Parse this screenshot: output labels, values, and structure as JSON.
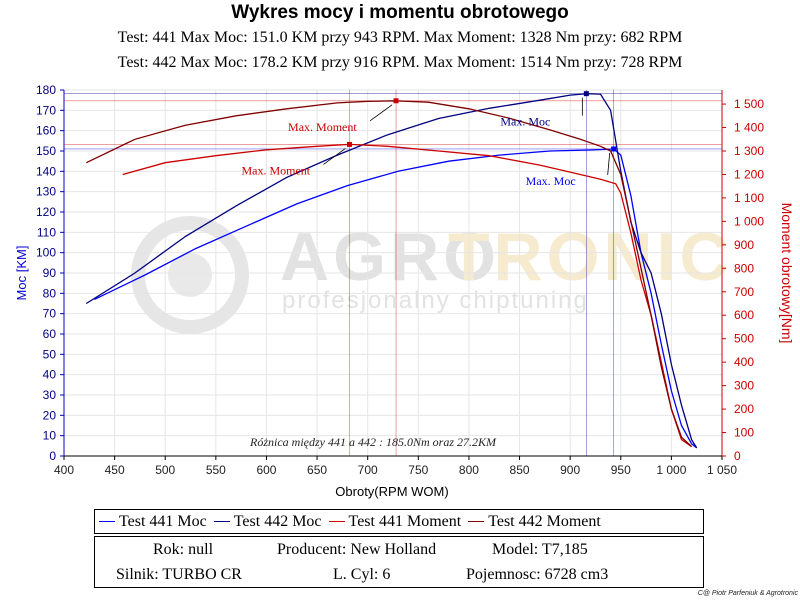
{
  "header": {
    "title": "Wykres mocy i momentu obrotowego",
    "test1_line": "Test: 441 Max Moc: 151.0 KM przy 943 RPM. Max Moment: 1328 Nm przy: 682 RPM",
    "test2_line": "Test: 442 Max Moc: 178.2 KM przy 916 RPM. Max Moment: 1514 Nm przy: 728 RPM"
  },
  "watermark": {
    "brand_a": "AGRO",
    "brand_b": "TRONIC",
    "tagline": "profesjonalny chiptuning"
  },
  "legend": {
    "items": [
      {
        "label": "Test 441 Moc",
        "color": "#0000ff"
      },
      {
        "label": "Test 442 Moc",
        "color": "#000080"
      },
      {
        "label": "Test 441 Moment",
        "color": "#cc0000"
      },
      {
        "label": "Test 442 Moment",
        "color": "#800000"
      }
    ]
  },
  "info": {
    "rok": "Rok: null",
    "producent": "Producent: New Holland",
    "model": "Model: T7,185",
    "silnik": "Silnik: TURBO CR",
    "cyl": "L. Cyl: 6",
    "pojemnosc": "Pojemnosc: 6728 cm3"
  },
  "copyright": "C@ Piotr Parfeniuk & Agrotronic",
  "chart_data": {
    "type": "line",
    "xlabel": "Obroty(RPM WOM)",
    "ylabel": "Moc [KM]",
    "y2label": "Moment obrotowy[Nm]",
    "xlim": [
      400,
      1050
    ],
    "ylim": [
      0,
      180
    ],
    "y2lim": [
      0,
      1560
    ],
    "x_ticks": [
      400,
      450,
      500,
      550,
      600,
      650,
      700,
      750,
      800,
      850,
      900,
      950,
      1000,
      1050
    ],
    "x_tick_labels": [
      "400",
      "450",
      "500",
      "550",
      "600",
      "650",
      "700",
      "750",
      "800",
      "850",
      "900",
      "950",
      "1 000",
      "1 050"
    ],
    "y_ticks": [
      0,
      10,
      20,
      30,
      40,
      50,
      60,
      70,
      80,
      90,
      100,
      110,
      120,
      130,
      140,
      150,
      160,
      170,
      180
    ],
    "y2_ticks": [
      0,
      100,
      200,
      300,
      400,
      500,
      600,
      700,
      800,
      900,
      1000,
      1100,
      1200,
      1300,
      1400,
      1500
    ],
    "y2_tick_labels": [
      "0",
      "100",
      "200",
      "300",
      "400",
      "500",
      "600",
      "700",
      "800",
      "900",
      "1 000",
      "1 100",
      "1 200",
      "1 300",
      "1 400",
      "1 500"
    ],
    "difference_note": "Różnica między 441 a 442 :  185.0Nm oraz 27.2KM",
    "series": [
      {
        "name": "Test 441 Moc",
        "axis": "left",
        "color": "#0000ff",
        "x": [
          430,
          480,
          530,
          580,
          630,
          680,
          730,
          780,
          830,
          880,
          920,
          943,
          950,
          960,
          970,
          980,
          990,
          1000,
          1010,
          1020,
          1025
        ],
        "y": [
          77,
          89,
          102,
          113,
          124,
          133,
          140,
          145,
          148,
          150,
          150.5,
          151,
          148,
          128,
          100,
          80,
          55,
          32,
          15,
          6,
          4
        ]
      },
      {
        "name": "Test 442 Moc",
        "axis": "left",
        "color": "#000080",
        "x": [
          422,
          470,
          520,
          570,
          620,
          670,
          720,
          770,
          820,
          870,
          900,
          916,
          930,
          940,
          950,
          960,
          970,
          980,
          990,
          1000,
          1010,
          1020,
          1025
        ],
        "y": [
          75,
          90,
          108,
          123,
          137,
          148,
          158,
          166,
          171,
          175,
          177.5,
          178.2,
          178,
          170,
          140,
          115,
          100,
          90,
          70,
          45,
          25,
          8,
          4
        ]
      },
      {
        "name": "Test 441 Moment",
        "axis": "right",
        "color": "#cc0000",
        "x": [
          458,
          500,
          550,
          600,
          650,
          682,
          720,
          770,
          820,
          870,
          900,
          930,
          945,
          950,
          960,
          970,
          980,
          990,
          1000,
          1010,
          1020
        ],
        "y": [
          1200,
          1250,
          1280,
          1305,
          1320,
          1328,
          1320,
          1300,
          1280,
          1240,
          1210,
          1180,
          1160,
          1120,
          950,
          750,
          600,
          400,
          200,
          70,
          40
        ]
      },
      {
        "name": "Test 442 Moment",
        "axis": "right",
        "color": "#800000",
        "x": [
          422,
          470,
          520,
          570,
          620,
          670,
          700,
          728,
          760,
          800,
          840,
          880,
          910,
          930,
          940,
          950,
          960,
          970,
          980,
          990,
          1000,
          1010,
          1020
        ],
        "y": [
          1250,
          1350,
          1410,
          1450,
          1480,
          1505,
          1512,
          1514,
          1508,
          1480,
          1440,
          1390,
          1350,
          1320,
          1300,
          1200,
          1000,
          800,
          600,
          380,
          200,
          80,
          40
        ]
      }
    ],
    "annotations": [
      {
        "label": "Max. Moment",
        "series": "Test 442 Moment",
        "x": 728,
        "y": 1514,
        "axis": "right",
        "color": "#cc0000"
      },
      {
        "label": "Max. Moment",
        "series": "Test 441 Moment",
        "x": 682,
        "y": 1328,
        "axis": "right",
        "color": "#cc0000"
      },
      {
        "label": "Max. Moc",
        "series": "Test 442 Moc",
        "x": 916,
        "y": 178.2,
        "axis": "left",
        "color": "#000080"
      },
      {
        "label": "Max. Moc",
        "series": "Test 441 Moc",
        "x": 943,
        "y": 151,
        "axis": "left",
        "color": "#0000ff"
      }
    ]
  }
}
